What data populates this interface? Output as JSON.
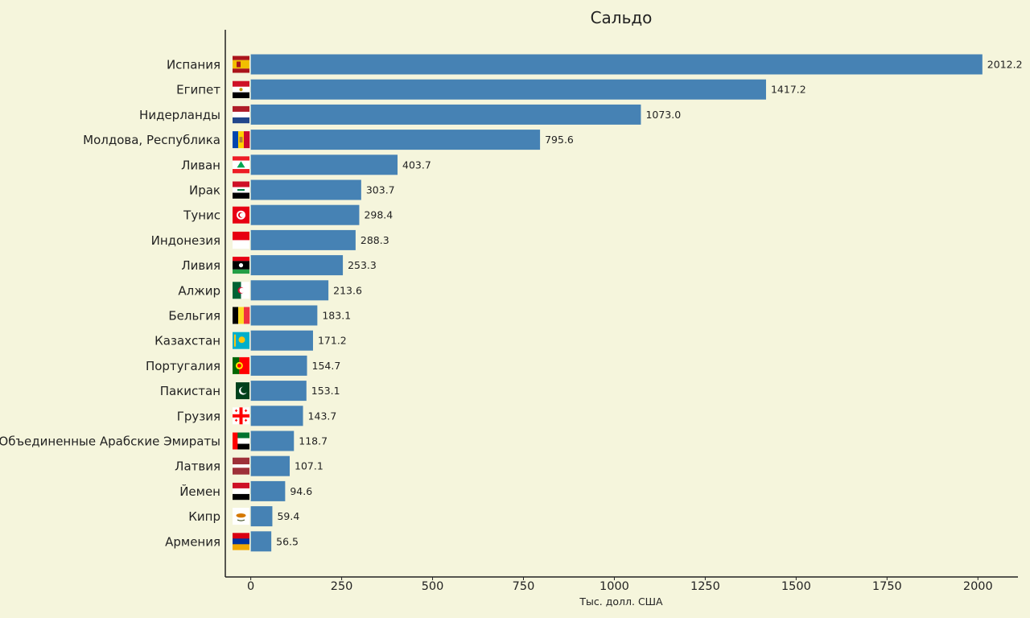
{
  "chart_data": {
    "type": "bar",
    "orientation": "horizontal",
    "title": "Сальдо",
    "xlabel": "Тыс. долл. США",
    "ylabel": "",
    "xlim": [
      -70,
      2110
    ],
    "xticks": [
      0,
      250,
      500,
      750,
      1000,
      1250,
      1500,
      1750,
      2000
    ],
    "grid": false,
    "bar_color": "#4682b4",
    "categories": [
      "Испания",
      "Египет",
      "Нидерланды",
      "Молдова, Республика",
      "Ливан",
      "Ирак",
      "Тунис",
      "Индонезия",
      "Ливия",
      "Алжир",
      "Бельгия",
      "Казахстан",
      "Португалия",
      "Пакистан",
      "Грузия",
      "Объединенные Арабские Эмираты",
      "Латвия",
      "Йемен",
      "Кипр",
      "Армения"
    ],
    "values": [
      2012.2,
      1417.2,
      1073.0,
      795.6,
      403.7,
      303.7,
      298.4,
      288.3,
      253.3,
      213.6,
      183.1,
      171.2,
      154.7,
      153.1,
      143.7,
      118.7,
      107.1,
      94.6,
      59.4,
      56.5
    ],
    "value_labels": [
      "2012.2",
      "1417.2",
      "1073.0",
      "795.6",
      "403.7",
      "303.7",
      "298.4",
      "288.3",
      "253.3",
      "213.6",
      "183.1",
      "171.2",
      "154.7",
      "153.1",
      "143.7",
      "118.7",
      "107.1",
      "94.6",
      "59.4",
      "56.5"
    ],
    "flags": [
      "spain-flag-icon",
      "egypt-flag-icon",
      "netherlands-flag-icon",
      "moldova-flag-icon",
      "lebanon-flag-icon",
      "iraq-flag-icon",
      "tunisia-flag-icon",
      "indonesia-flag-icon",
      "libya-flag-icon",
      "algeria-flag-icon",
      "belgium-flag-icon",
      "kazakhstan-flag-icon",
      "portugal-flag-icon",
      "pakistan-flag-icon",
      "georgia-flag-icon",
      "uae-flag-icon",
      "latvia-flag-icon",
      "yemen-flag-icon",
      "cyprus-flag-icon",
      "armenia-flag-icon"
    ]
  }
}
